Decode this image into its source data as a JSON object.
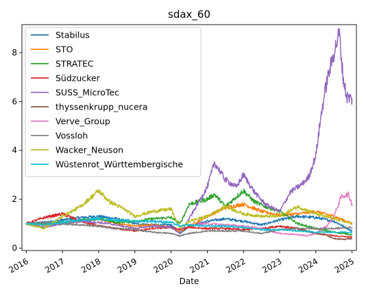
{
  "chart_data": {
    "type": "line",
    "title": "sdax_60",
    "xlabel": "Date",
    "ylabel": "",
    "xlim": [
      2015.88,
      2025.12
    ],
    "ylim": [
      -0.1,
      9.15
    ],
    "x_ticks": [
      2016,
      2017,
      2018,
      2019,
      2020,
      2021,
      2022,
      2023,
      2024,
      2025
    ],
    "x_tick_labels": [
      "2016",
      "2017",
      "2018",
      "2019",
      "2020",
      "2021",
      "2022",
      "2023",
      "2024",
      "2025"
    ],
    "y_ticks": [
      0,
      2,
      4,
      6,
      8
    ],
    "y_tick_labels": [
      "0",
      "2",
      "4",
      "6",
      "8"
    ],
    "grid": false,
    "legend_position": "top-left",
    "series": [
      {
        "name": "Stabilus",
        "color": "#1f77b4",
        "x": [
          2016,
          2016.5,
          2017,
          2017.5,
          2018,
          2018.5,
          2019,
          2019.5,
          2020,
          2020.25,
          2020.5,
          2021,
          2021.5,
          2022,
          2022.5,
          2023,
          2023.5,
          2024,
          2024.5,
          2025
        ],
        "y": [
          1.0,
          1.05,
          1.15,
          1.25,
          1.3,
          1.2,
          1.0,
          0.95,
          0.95,
          0.6,
          0.9,
          1.1,
          1.2,
          1.1,
          0.95,
          1.15,
          1.3,
          1.25,
          1.1,
          0.7
        ]
      },
      {
        "name": "STO",
        "color": "#ff7f0e",
        "x": [
          2016,
          2016.5,
          2017,
          2017.5,
          2018,
          2018.5,
          2019,
          2019.5,
          2020,
          2020.25,
          2020.5,
          2021,
          2021.5,
          2022,
          2022.5,
          2023,
          2023.5,
          2024,
          2024.5,
          2025
        ],
        "y": [
          1.0,
          0.95,
          1.0,
          1.1,
          1.2,
          1.0,
          0.9,
          0.95,
          0.85,
          0.65,
          0.9,
          1.3,
          1.65,
          1.8,
          1.5,
          1.35,
          1.4,
          1.5,
          1.3,
          1.0
        ]
      },
      {
        "name": "STRATEC",
        "color": "#2ca02c",
        "x": [
          2016,
          2016.5,
          2017,
          2017.5,
          2018,
          2018.5,
          2019,
          2019.5,
          2020,
          2020.25,
          2020.5,
          2021,
          2021.2,
          2021.5,
          2022,
          2022.3,
          2022.6,
          2023,
          2023.5,
          2024,
          2024.5,
          2025
        ],
        "y": [
          1.0,
          1.0,
          1.05,
          1.15,
          1.2,
          1.05,
          1.1,
          1.2,
          1.25,
          1.0,
          1.8,
          2.0,
          2.2,
          1.7,
          2.35,
          1.9,
          1.7,
          1.5,
          1.0,
          0.8,
          0.65,
          0.55
        ]
      },
      {
        "name": "Südzucker",
        "color": "#d62728",
        "x": [
          2016,
          2016.5,
          2017,
          2017.5,
          2018,
          2018.5,
          2019,
          2019.5,
          2020,
          2020.25,
          2020.5,
          2021,
          2021.5,
          2022,
          2022.5,
          2023,
          2023.5,
          2024,
          2024.5,
          2025
        ],
        "y": [
          1.0,
          1.25,
          1.4,
          1.1,
          0.9,
          0.8,
          0.7,
          0.8,
          0.85,
          0.75,
          0.85,
          0.8,
          0.8,
          0.75,
          0.8,
          0.9,
          0.8,
          0.6,
          0.5,
          0.45
        ]
      },
      {
        "name": "SUSS_MicroTec",
        "color": "#9467bd",
        "x": [
          2016,
          2016.5,
          2017,
          2017.5,
          2018,
          2018.5,
          2019,
          2019.5,
          2020,
          2020.25,
          2020.5,
          2021,
          2021.2,
          2021.5,
          2021.8,
          2022,
          2022.3,
          2022.6,
          2023,
          2023.3,
          2023.6,
          2023.8,
          2024,
          2024.15,
          2024.3,
          2024.5,
          2024.65,
          2024.75,
          2024.85,
          2025
        ],
        "y": [
          1.0,
          0.85,
          1.0,
          1.1,
          1.05,
          0.95,
          0.8,
          0.9,
          0.85,
          0.6,
          1.2,
          2.5,
          3.5,
          2.8,
          2.5,
          3.0,
          2.3,
          1.8,
          1.5,
          2.3,
          2.6,
          2.9,
          3.8,
          5.5,
          6.8,
          8.0,
          8.8,
          7.0,
          6.2,
          6.1
        ]
      },
      {
        "name": "thyssenkrupp_nucera",
        "color": "#8c564b",
        "x": [
          2023.5,
          2023.75,
          2024,
          2024.25,
          2024.5,
          2024.75,
          2025
        ],
        "y": [
          0.75,
          0.7,
          0.6,
          0.55,
          0.4,
          0.35,
          0.4
        ]
      },
      {
        "name": "Verve_Group",
        "color": "#e377c2",
        "x": [
          2020.75,
          2021,
          2021.5,
          2022,
          2022.5,
          2023,
          2023.5,
          2023.75,
          2024,
          2024.3,
          2024.5,
          2024.7,
          2024.9,
          2025
        ],
        "y": [
          1.0,
          1.0,
          0.95,
          0.9,
          0.8,
          0.6,
          0.55,
          0.5,
          0.6,
          0.9,
          1.3,
          2.1,
          2.2,
          1.8
        ]
      },
      {
        "name": "Vossloh",
        "color": "#7f7f7f",
        "x": [
          2016,
          2016.5,
          2017,
          2017.5,
          2018,
          2018.5,
          2019,
          2019.5,
          2020,
          2020.25,
          2020.5,
          2021,
          2021.5,
          2022,
          2022.5,
          2023,
          2023.5,
          2024,
          2024.5,
          2025
        ],
        "y": [
          1.0,
          1.05,
          1.0,
          0.95,
          0.9,
          0.8,
          0.75,
          0.65,
          0.6,
          0.5,
          0.6,
          0.7,
          0.7,
          0.7,
          0.6,
          0.75,
          0.8,
          0.8,
          0.8,
          0.85
        ]
      },
      {
        "name": "Wacker_Neuson",
        "color": "#bcbd22",
        "x": [
          2016,
          2016.5,
          2017,
          2017.5,
          2018,
          2018.3,
          2018.7,
          2019,
          2019.5,
          2020,
          2020.25,
          2020.5,
          2021,
          2021.5,
          2022,
          2022.5,
          2023,
          2023.5,
          2024,
          2024.5,
          2025
        ],
        "y": [
          1.0,
          0.8,
          1.3,
          1.7,
          2.35,
          1.9,
          1.6,
          1.3,
          1.5,
          1.6,
          0.8,
          1.1,
          1.3,
          1.7,
          1.4,
          1.3,
          1.3,
          1.7,
          1.4,
          1.2,
          1.0
        ]
      },
      {
        "name": "Wüstenrot_Württembergische",
        "color": "#17becf",
        "x": [
          2016,
          2016.5,
          2017,
          2017.5,
          2018,
          2018.5,
          2019,
          2019.5,
          2020,
          2020.25,
          2020.5,
          2021,
          2021.5,
          2022,
          2022.5,
          2023,
          2023.5,
          2024,
          2024.5,
          2025
        ],
        "y": [
          1.0,
          0.95,
          1.05,
          1.15,
          1.2,
          1.15,
          1.1,
          1.1,
          1.05,
          0.9,
          0.95,
          0.9,
          0.9,
          0.85,
          0.75,
          0.75,
          0.7,
          0.65,
          0.65,
          0.65
        ]
      }
    ]
  }
}
